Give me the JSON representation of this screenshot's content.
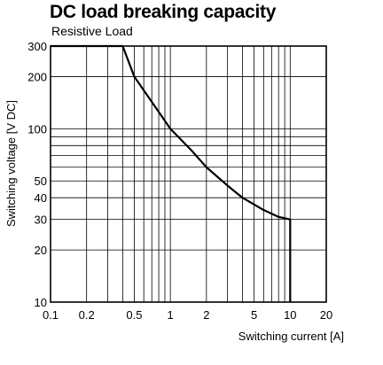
{
  "chart_data": {
    "type": "line",
    "title": "DC load breaking capacity",
    "subtitle": "Resistive Load",
    "xlabel": "Switching current [A]",
    "ylabel": "Switching voltage [V DC]",
    "x_scale": "log",
    "y_scale": "log",
    "xlim": [
      0.1,
      20
    ],
    "ylim": [
      10,
      300
    ],
    "grid": true,
    "x_ticks": [
      {
        "value": 0.1,
        "label": "0.1"
      },
      {
        "value": 0.2,
        "label": "0.2"
      },
      {
        "value": 0.5,
        "label": "0.5"
      },
      {
        "value": 1,
        "label": "1"
      },
      {
        "value": 2,
        "label": "2"
      },
      {
        "value": 5,
        "label": "5"
      },
      {
        "value": 10,
        "label": "10"
      },
      {
        "value": 20,
        "label": "20"
      }
    ],
    "y_ticks": [
      {
        "value": 10,
        "label": "10"
      },
      {
        "value": 20,
        "label": "20"
      },
      {
        "value": 30,
        "label": "30"
      },
      {
        "value": 40,
        "label": "40"
      },
      {
        "value": 50,
        "label": "50"
      },
      {
        "value": 100,
        "label": "100"
      },
      {
        "value": 200,
        "label": "200"
      },
      {
        "value": 300,
        "label": "300"
      }
    ],
    "x_grid": [
      0.1,
      0.2,
      0.3,
      0.4,
      0.5,
      0.6,
      0.7,
      0.8,
      0.9,
      1,
      2,
      3,
      4,
      5,
      6,
      7,
      8,
      9,
      10,
      20
    ],
    "y_grid": [
      10,
      20,
      30,
      40,
      50,
      60,
      70,
      80,
      90,
      100,
      200,
      300
    ],
    "series": [
      {
        "points": [
          {
            "x": 0.1,
            "y": 300
          },
          {
            "x": 0.4,
            "y": 300
          },
          {
            "x": 0.5,
            "y": 200
          },
          {
            "x": 0.7,
            "y": 143
          },
          {
            "x": 1,
            "y": 100
          },
          {
            "x": 1.5,
            "y": 75
          },
          {
            "x": 2,
            "y": 60
          },
          {
            "x": 3,
            "y": 47
          },
          {
            "x": 4,
            "y": 40
          },
          {
            "x": 6,
            "y": 34
          },
          {
            "x": 8,
            "y": 31
          },
          {
            "x": 10,
            "y": 30
          },
          {
            "x": 10,
            "y": 10
          }
        ]
      }
    ]
  }
}
